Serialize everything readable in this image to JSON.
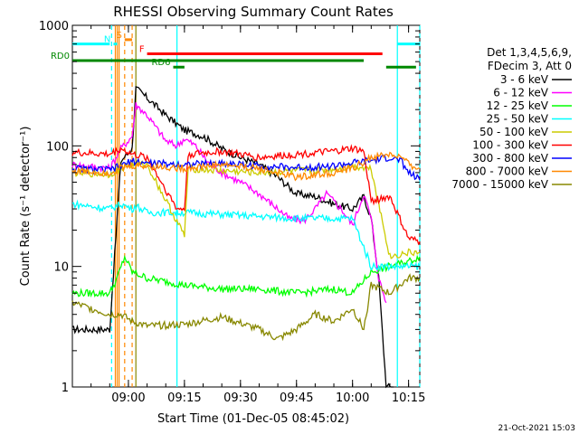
{
  "chart_data": {
    "type": "line",
    "title": "RHESSI Observing Summary Count Rates",
    "xlabel": "Start Time (01-Dec-05 08:45:02)",
    "ylabel": "Count Rate (s⁻¹ detector⁻¹)",
    "ylim": [
      1,
      1000
    ],
    "yscale": "log",
    "xlim_minutes": [
      0,
      93
    ],
    "x_ticks": [
      {
        "label": "09:00",
        "minute": 15
      },
      {
        "label": "09:15",
        "minute": 30
      },
      {
        "label": "09:30",
        "minute": 45
      },
      {
        "label": "09:45",
        "minute": 60
      },
      {
        "label": "10:00",
        "minute": 75
      },
      {
        "label": "10:15",
        "minute": 90
      }
    ],
    "y_ticks": [
      {
        "label": "1",
        "value": 1
      },
      {
        "label": "10",
        "value": 10
      },
      {
        "label": "100",
        "value": 100
      },
      {
        "label": "1000",
        "value": 1000
      }
    ],
    "legend": {
      "header": [
        "Det 1,3,4,5,6,9,",
        "FDecim 3, Att 0"
      ],
      "position": "right"
    },
    "series": [
      {
        "name": "3 - 6 keV",
        "color": "#000000",
        "points": [
          [
            0,
            3
          ],
          [
            10,
            3
          ],
          [
            13,
            75
          ],
          [
            16,
            95
          ],
          [
            17,
            300
          ],
          [
            20,
            250
          ],
          [
            25,
            180
          ],
          [
            30,
            135
          ],
          [
            35,
            120
          ],
          [
            40,
            95
          ],
          [
            45,
            80
          ],
          [
            50,
            70
          ],
          [
            55,
            55
          ],
          [
            60,
            40
          ],
          [
            65,
            38
          ],
          [
            70,
            33
          ],
          [
            75,
            30
          ],
          [
            78,
            38
          ],
          [
            80,
            25
          ],
          [
            82,
            8
          ],
          [
            84,
            1
          ],
          [
            86,
            1
          ]
        ]
      },
      {
        "name": "6 - 12 keV",
        "color": "#ff00ff",
        "points": [
          [
            0,
            70
          ],
          [
            10,
            65
          ],
          [
            13,
            95
          ],
          [
            16,
            120
          ],
          [
            17,
            220
          ],
          [
            20,
            180
          ],
          [
            25,
            110
          ],
          [
            28,
            100
          ],
          [
            30,
            115
          ],
          [
            33,
            100
          ],
          [
            36,
            75
          ],
          [
            40,
            60
          ],
          [
            45,
            50
          ],
          [
            50,
            40
          ],
          [
            55,
            30
          ],
          [
            58,
            25
          ],
          [
            62,
            24
          ],
          [
            65,
            30
          ],
          [
            68,
            40
          ],
          [
            72,
            30
          ],
          [
            75,
            22
          ],
          [
            78,
            40
          ],
          [
            80,
            25
          ],
          [
            82,
            8
          ],
          [
            84,
            5
          ]
        ]
      },
      {
        "name": "12 - 25 keV",
        "color": "#00ff00",
        "points": [
          [
            0,
            6
          ],
          [
            10,
            6
          ],
          [
            12,
            8
          ],
          [
            14,
            12
          ],
          [
            16,
            9
          ],
          [
            20,
            8
          ],
          [
            30,
            7
          ],
          [
            40,
            6.5
          ],
          [
            50,
            6.5
          ],
          [
            60,
            6
          ],
          [
            70,
            6.5
          ],
          [
            75,
            6
          ],
          [
            80,
            9
          ],
          [
            85,
            10
          ],
          [
            90,
            11
          ],
          [
            93,
            12
          ]
        ]
      },
      {
        "name": "25 - 50 keV",
        "color": "#00ffff",
        "points": [
          [
            0,
            33
          ],
          [
            10,
            30
          ],
          [
            13,
            33
          ],
          [
            16,
            30
          ],
          [
            17,
            32
          ],
          [
            20,
            28
          ],
          [
            30,
            28
          ],
          [
            40,
            27
          ],
          [
            50,
            26
          ],
          [
            60,
            25
          ],
          [
            70,
            25
          ],
          [
            75,
            25
          ],
          [
            80,
            10
          ],
          [
            85,
            10
          ],
          [
            90,
            10
          ],
          [
            93,
            10
          ]
        ]
      },
      {
        "name": "50 - 100 keV",
        "color": "#cccc00",
        "points": [
          [
            0,
            60
          ],
          [
            10,
            58
          ],
          [
            13,
            65
          ],
          [
            16,
            70
          ],
          [
            20,
            70
          ],
          [
            30,
            18
          ],
          [
            31,
            65
          ],
          [
            40,
            62
          ],
          [
            50,
            60
          ],
          [
            60,
            62
          ],
          [
            70,
            64
          ],
          [
            75,
            68
          ],
          [
            80,
            65
          ],
          [
            85,
            12
          ],
          [
            90,
            13
          ],
          [
            93,
            13
          ]
        ]
      },
      {
        "name": "100 - 300 keV",
        "color": "#ff0000",
        "points": [
          [
            0,
            88
          ],
          [
            10,
            85
          ],
          [
            13,
            95
          ],
          [
            16,
            85
          ],
          [
            20,
            80
          ],
          [
            28,
            30
          ],
          [
            30,
            30
          ],
          [
            31,
            85
          ],
          [
            40,
            90
          ],
          [
            50,
            80
          ],
          [
            60,
            85
          ],
          [
            70,
            90
          ],
          [
            75,
            95
          ],
          [
            78,
            90
          ],
          [
            80,
            35
          ],
          [
            85,
            38
          ],
          [
            90,
            17
          ],
          [
            93,
            16
          ]
        ]
      },
      {
        "name": "300 - 800 keV",
        "color": "#0000ff",
        "points": [
          [
            0,
            65
          ],
          [
            10,
            63
          ],
          [
            13,
            68
          ],
          [
            16,
            75
          ],
          [
            20,
            72
          ],
          [
            30,
            70
          ],
          [
            40,
            72
          ],
          [
            50,
            68
          ],
          [
            60,
            66
          ],
          [
            70,
            68
          ],
          [
            75,
            72
          ],
          [
            80,
            75
          ],
          [
            85,
            80
          ],
          [
            88,
            75
          ],
          [
            90,
            60
          ],
          [
            93,
            52
          ]
        ]
      },
      {
        "name": "800 - 7000 keV",
        "color": "#ff8800",
        "points": [
          [
            0,
            62
          ],
          [
            10,
            60
          ],
          [
            13,
            65
          ],
          [
            16,
            68
          ],
          [
            20,
            68
          ],
          [
            30,
            65
          ],
          [
            40,
            70
          ],
          [
            50,
            65
          ],
          [
            60,
            55
          ],
          [
            70,
            60
          ],
          [
            75,
            65
          ],
          [
            80,
            80
          ],
          [
            85,
            85
          ],
          [
            88,
            80
          ],
          [
            90,
            70
          ],
          [
            93,
            65
          ]
        ]
      },
      {
        "name": "7000 - 15000 keV",
        "color": "#888800",
        "points": [
          [
            0,
            5
          ],
          [
            10,
            4
          ],
          [
            13,
            4
          ],
          [
            16,
            3.5
          ],
          [
            20,
            3.2
          ],
          [
            30,
            3.3
          ],
          [
            40,
            3.8
          ],
          [
            50,
            3
          ],
          [
            55,
            2.5
          ],
          [
            60,
            3
          ],
          [
            65,
            4
          ],
          [
            70,
            3.5
          ],
          [
            75,
            4.5
          ],
          [
            78,
            3
          ],
          [
            80,
            7
          ],
          [
            85,
            6
          ],
          [
            90,
            8
          ],
          [
            93,
            8
          ]
        ]
      }
    ],
    "attenuator_bars": [
      {
        "label": "S",
        "color": "#ff8800",
        "start": 14,
        "end": 16,
        "value": 760
      },
      {
        "label": "N",
        "color": "#00ffff",
        "start": 11,
        "end": 12,
        "value": 700
      },
      {
        "label": "F",
        "color": "#ff0000",
        "start": 20,
        "end": 83,
        "value": 580
      },
      {
        "label": "RD0",
        "color": "#008800",
        "start": 0,
        "end": 78,
        "value": 510
      },
      {
        "label": "RD6",
        "color": "#008800",
        "start": 27,
        "end": 30,
        "value": 450
      },
      {
        "label": "",
        "color": "#008800",
        "start": 84,
        "end": 92,
        "value": 450
      },
      {
        "label": "",
        "color": "#00ffff",
        "start": 0,
        "end": 10,
        "value": 700
      },
      {
        "label": "",
        "color": "#00ffff",
        "start": 87,
        "end": 93,
        "value": 700
      }
    ],
    "vertical_markers": [
      {
        "minute": 10.5,
        "color": "#00ffff",
        "style": "dashed"
      },
      {
        "minute": 11.5,
        "color": "#ff8800",
        "style": "solid"
      },
      {
        "minute": 12,
        "color": "#ff8800",
        "style": "solid"
      },
      {
        "minute": 12.5,
        "color": "#ff8800",
        "style": "solid"
      },
      {
        "minute": 14,
        "color": "#ff8800",
        "style": "dashed"
      },
      {
        "minute": 16,
        "color": "#ff8800",
        "style": "dashed"
      },
      {
        "minute": 17,
        "color": "#888800",
        "style": "solid"
      },
      {
        "minute": 28,
        "color": "#00ffff",
        "style": "solid"
      },
      {
        "minute": 87,
        "color": "#00ffff",
        "style": "solid"
      },
      {
        "minute": 93,
        "color": "#00ffff",
        "style": "dashed"
      }
    ]
  },
  "footer_timestamp": "21-Oct-2021 15:03"
}
